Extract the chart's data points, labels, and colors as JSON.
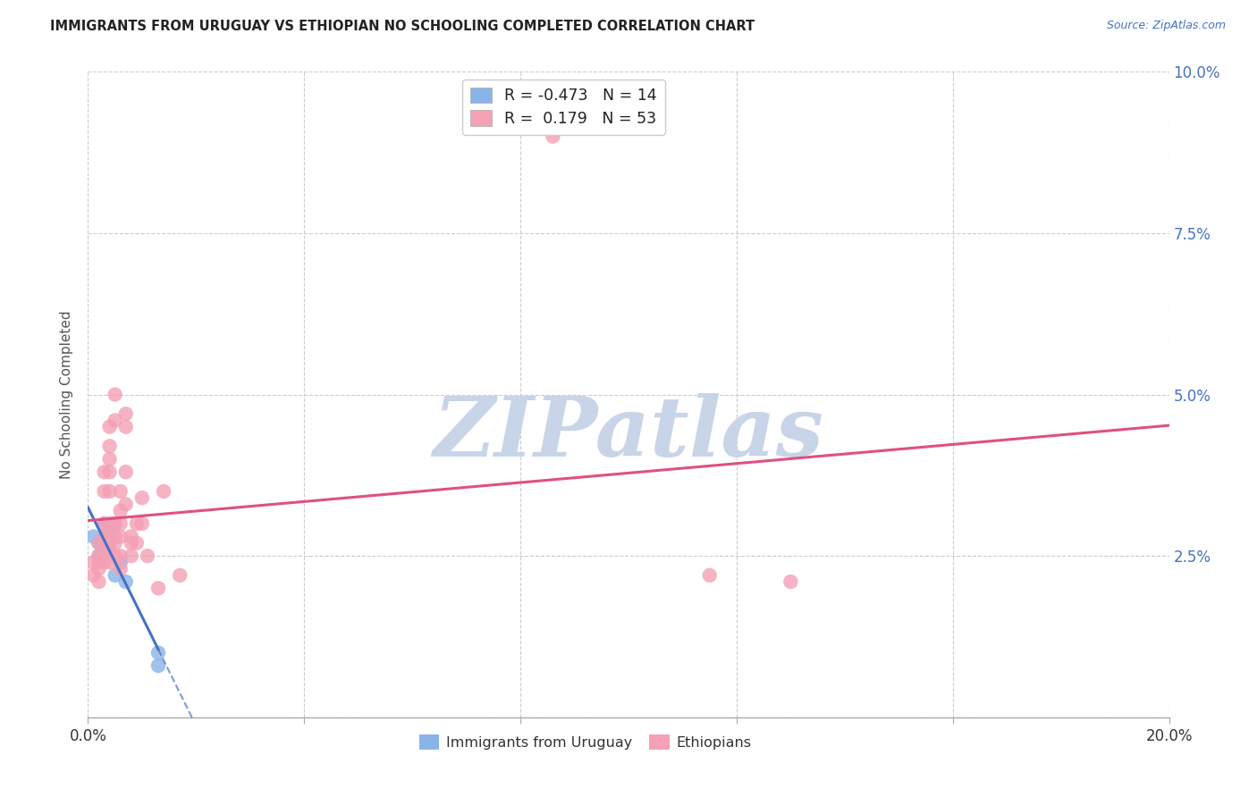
{
  "title": "IMMIGRANTS FROM URUGUAY VS ETHIOPIAN NO SCHOOLING COMPLETED CORRELATION CHART",
  "source": "Source: ZipAtlas.com",
  "ylabel": "No Schooling Completed",
  "xlim": [
    0.0,
    0.2
  ],
  "ylim": [
    0.0,
    0.1
  ],
  "xticks": [
    0.0,
    0.04,
    0.08,
    0.12,
    0.16,
    0.2
  ],
  "yticks": [
    0.0,
    0.025,
    0.05,
    0.075,
    0.1
  ],
  "ytick_labels_right": [
    "",
    "2.5%",
    "5.0%",
    "7.5%",
    "10.0%"
  ],
  "xtick_labels": [
    "0.0%",
    "",
    "",
    "",
    "",
    "20.0%"
  ],
  "uruguay_R": -0.473,
  "uruguay_N": 14,
  "ethiopian_R": 0.179,
  "ethiopian_N": 53,
  "uruguay_color": "#89b4e8",
  "ethiopian_color": "#f4a0b5",
  "trend_uruguay_color": "#4472c4",
  "trend_ethiopian_color": "#e05080",
  "watermark_zip_color": "#c8d4e8",
  "watermark_atlas_color": "#c8d4e8",
  "background_color": "#ffffff",
  "grid_color": "#cccccc",
  "uruguay_points": [
    [
      0.001,
      0.028
    ],
    [
      0.002,
      0.027
    ],
    [
      0.002,
      0.025
    ],
    [
      0.003,
      0.03
    ],
    [
      0.003,
      0.028
    ],
    [
      0.003,
      0.026
    ],
    [
      0.004,
      0.029
    ],
    [
      0.004,
      0.027
    ],
    [
      0.005,
      0.03
    ],
    [
      0.005,
      0.022
    ],
    [
      0.006,
      0.024
    ],
    [
      0.007,
      0.021
    ],
    [
      0.013,
      0.008
    ],
    [
      0.013,
      0.01
    ]
  ],
  "ethiopian_points": [
    [
      0.001,
      0.024
    ],
    [
      0.001,
      0.022
    ],
    [
      0.002,
      0.024
    ],
    [
      0.002,
      0.027
    ],
    [
      0.002,
      0.025
    ],
    [
      0.002,
      0.023
    ],
    [
      0.002,
      0.021
    ],
    [
      0.003,
      0.035
    ],
    [
      0.003,
      0.038
    ],
    [
      0.003,
      0.03
    ],
    [
      0.003,
      0.028
    ],
    [
      0.003,
      0.026
    ],
    [
      0.003,
      0.024
    ],
    [
      0.004,
      0.045
    ],
    [
      0.004,
      0.042
    ],
    [
      0.004,
      0.04
    ],
    [
      0.004,
      0.038
    ],
    [
      0.004,
      0.035
    ],
    [
      0.004,
      0.03
    ],
    [
      0.004,
      0.028
    ],
    [
      0.004,
      0.027
    ],
    [
      0.004,
      0.026
    ],
    [
      0.004,
      0.024
    ],
    [
      0.005,
      0.05
    ],
    [
      0.005,
      0.046
    ],
    [
      0.005,
      0.03
    ],
    [
      0.005,
      0.028
    ],
    [
      0.005,
      0.027
    ],
    [
      0.005,
      0.025
    ],
    [
      0.006,
      0.035
    ],
    [
      0.006,
      0.032
    ],
    [
      0.006,
      0.03
    ],
    [
      0.006,
      0.028
    ],
    [
      0.006,
      0.025
    ],
    [
      0.006,
      0.023
    ],
    [
      0.007,
      0.047
    ],
    [
      0.007,
      0.045
    ],
    [
      0.007,
      0.038
    ],
    [
      0.007,
      0.033
    ],
    [
      0.008,
      0.028
    ],
    [
      0.008,
      0.027
    ],
    [
      0.008,
      0.025
    ],
    [
      0.009,
      0.03
    ],
    [
      0.009,
      0.027
    ],
    [
      0.01,
      0.034
    ],
    [
      0.01,
      0.03
    ],
    [
      0.011,
      0.025
    ],
    [
      0.013,
      0.02
    ],
    [
      0.014,
      0.035
    ],
    [
      0.017,
      0.022
    ],
    [
      0.086,
      0.09
    ],
    [
      0.115,
      0.022
    ],
    [
      0.13,
      0.021
    ]
  ]
}
